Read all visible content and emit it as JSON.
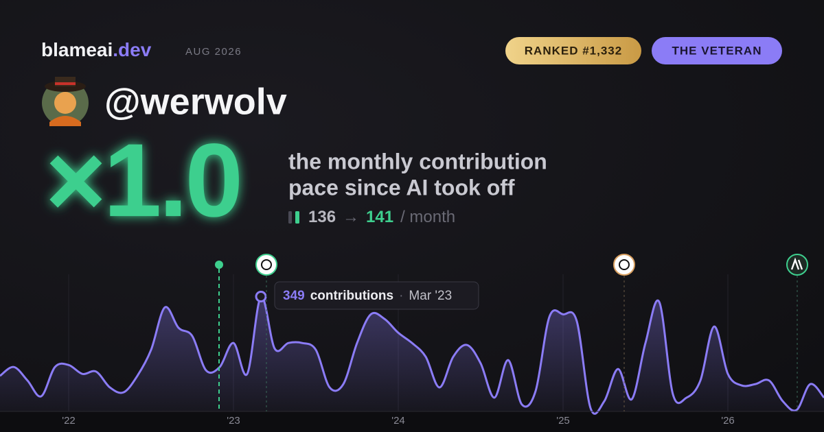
{
  "header": {
    "brand": "blameai",
    "brand_tld": ".dev",
    "period": "AUG 2026",
    "rank_badge": "RANKED #1,332",
    "title_badge": "THE VETERAN",
    "handle": "@werwolv"
  },
  "headline": {
    "multiplier": "×1.0",
    "line1": "the monthly contribution",
    "line2": "pace since AI took off",
    "before": "136",
    "arrow": "→",
    "after": "141",
    "unit": "/ month"
  },
  "chart_data": {
    "type": "line",
    "categories": [
      null,
      null,
      null,
      null,
      null,
      "'22",
      null,
      null,
      null,
      null,
      null,
      null,
      null,
      null,
      null,
      null,
      null,
      "'23",
      null,
      null,
      null,
      null,
      null,
      null,
      null,
      null,
      null,
      null,
      null,
      "'24",
      null,
      null,
      null,
      null,
      null,
      null,
      null,
      null,
      null,
      null,
      null,
      "'25",
      null,
      null,
      null,
      null,
      null,
      null,
      null,
      null,
      null,
      null,
      null,
      "'26",
      null,
      null,
      null,
      null,
      null,
      null,
      null
    ],
    "series": [
      {
        "name": "contributions",
        "color": "#8b7cf6",
        "values": [
          108,
          135,
          94,
          46,
          135,
          141,
          114,
          121,
          73,
          58,
          108,
          187,
          316,
          254,
          229,
          125,
          135,
          208,
          114,
          349,
          191,
          208,
          208,
          187,
          73,
          83,
          208,
          295,
          281,
          239,
          208,
          166,
          73,
          166,
          202,
          146,
          42,
          156,
          21,
          62,
          287,
          295,
          274,
          10,
          31,
          129,
          37,
          208,
          333,
          52,
          42,
          94,
          258,
          114,
          79,
          83,
          94,
          31,
          4,
          83,
          42
        ]
      }
    ],
    "ylim": [
      0,
      400
    ],
    "tooltip": {
      "label": "contributions",
      "date": "Mar '23"
    }
  }
}
